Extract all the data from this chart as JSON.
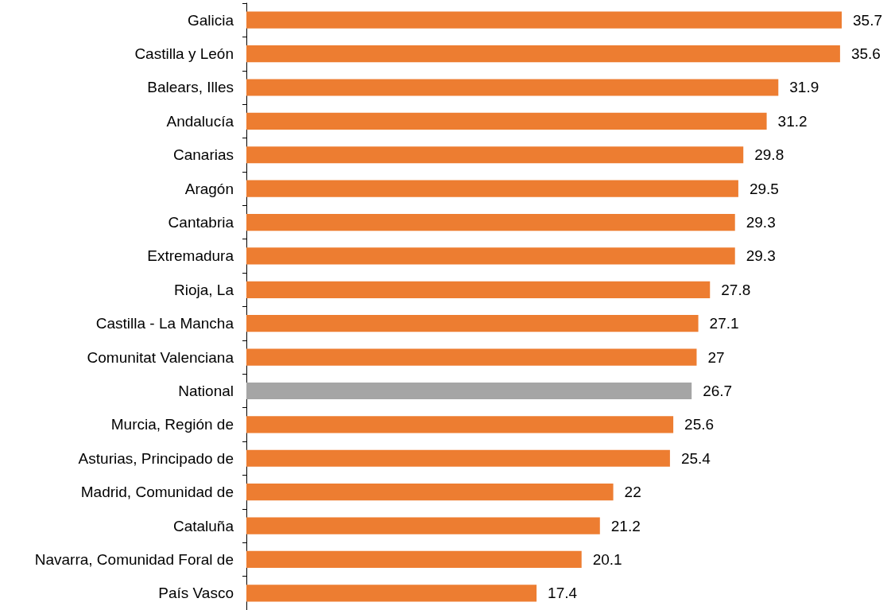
{
  "chart_data": {
    "type": "bar",
    "orientation": "horizontal",
    "categories": [
      "Galicia",
      "Castilla y León",
      "Balears, Illes",
      "Andalucía",
      "Canarias",
      "Aragón",
      "Cantabria",
      "Extremadura",
      "Rioja, La",
      "Castilla - La Mancha",
      "Comunitat Valenciana",
      "National",
      "Murcia, Región de",
      "Asturias, Principado de",
      "Madrid, Comunidad de",
      "Cataluña",
      "Navarra, Comunidad Foral de",
      "País Vasco"
    ],
    "values": [
      35.7,
      35.6,
      31.9,
      31.2,
      29.8,
      29.5,
      29.3,
      29.3,
      27.8,
      27.1,
      27,
      26.7,
      25.6,
      25.4,
      22,
      21.2,
      20.1,
      17.4
    ],
    "colors": [
      "#ed7d31",
      "#ed7d31",
      "#ed7d31",
      "#ed7d31",
      "#ed7d31",
      "#ed7d31",
      "#ed7d31",
      "#ed7d31",
      "#ed7d31",
      "#ed7d31",
      "#ed7d31",
      "#a5a5a5",
      "#ed7d31",
      "#ed7d31",
      "#ed7d31",
      "#ed7d31",
      "#ed7d31",
      "#ed7d31"
    ],
    "data_labels": true
  }
}
